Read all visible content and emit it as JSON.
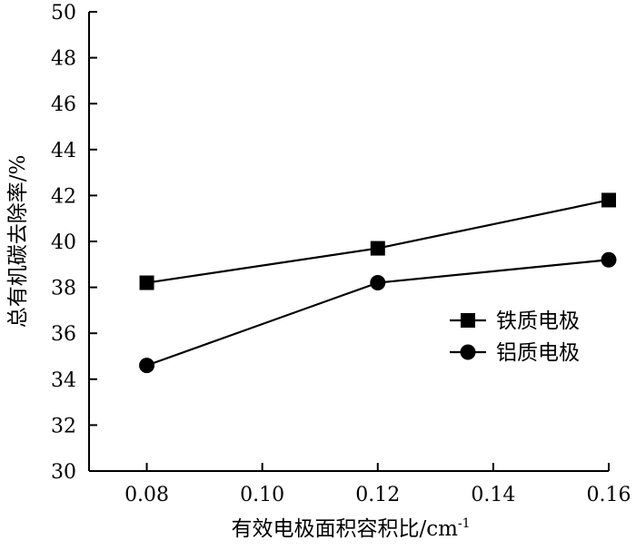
{
  "chart_data": {
    "type": "line",
    "xlabel": "有效电极面积容积比/cm",
    "xlabel_superscript": "-1",
    "ylabel": "总有机碳去除率/%",
    "xlim": [
      0.07,
      0.16
    ],
    "ylim": [
      30,
      50
    ],
    "xticks": [
      0.08,
      0.1,
      0.12,
      0.14,
      0.16
    ],
    "xtick_labels": [
      "0.08",
      "0.10",
      "0.12",
      "0.14",
      "0.16"
    ],
    "yticks": [
      30,
      32,
      34,
      36,
      38,
      40,
      42,
      44,
      46,
      48,
      50
    ],
    "ytick_labels": [
      "30",
      "32",
      "34",
      "36",
      "38",
      "40",
      "42",
      "44",
      "46",
      "48",
      "50"
    ],
    "grid": false,
    "legend_position": "right",
    "series": [
      {
        "name": "铁质电极",
        "marker": "square",
        "x": [
          0.08,
          0.12,
          0.16
        ],
        "y": [
          38.2,
          39.7,
          41.8
        ]
      },
      {
        "name": "铝质电极",
        "marker": "circle",
        "x": [
          0.08,
          0.12,
          0.16
        ],
        "y": [
          34.6,
          38.2,
          39.2
        ]
      }
    ]
  }
}
